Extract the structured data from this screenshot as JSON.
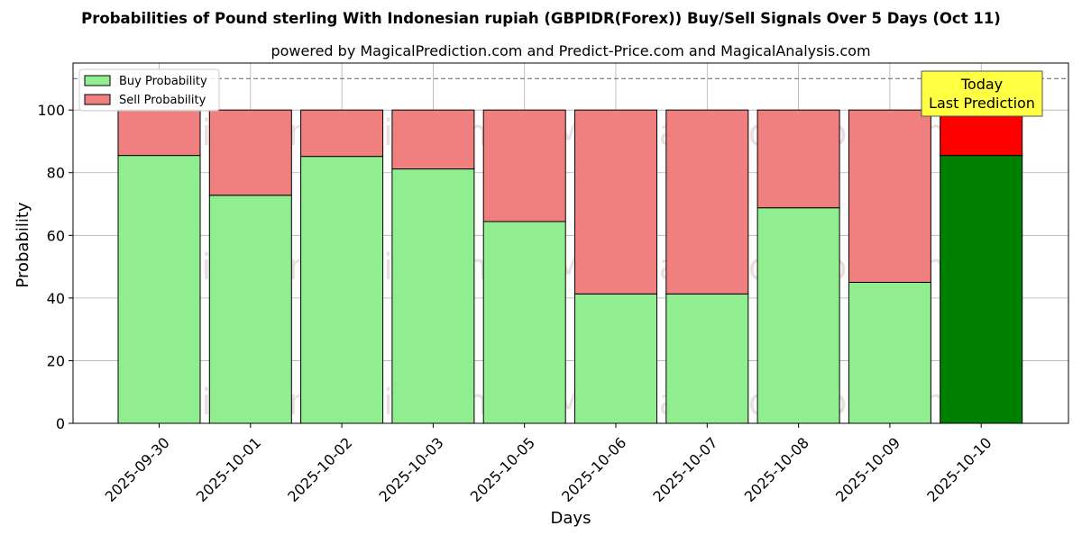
{
  "chart_data": {
    "type": "bar",
    "stacked": true,
    "title": "Probabilities of Pound sterling With Indonesian rupiah (GBPIDR(Forex)) Buy/Sell Signals Over 5 Days (Oct 11)",
    "subtitle": "powered by MagicalPrediction.com and Predict-Price.com and MagicalAnalysis.com",
    "xlabel": "Days",
    "ylabel": "Probability",
    "ylim": [
      0,
      115
    ],
    "yticks": [
      0,
      20,
      40,
      60,
      80,
      100
    ],
    "grid": true,
    "legend_position": "top-left",
    "reference_line": 110,
    "categories": [
      "2025-09-30",
      "2025-10-01",
      "2025-10-02",
      "2025-10-03",
      "2025-10-05",
      "2025-10-06",
      "2025-10-07",
      "2025-10-08",
      "2025-10-09",
      "2025-10-10"
    ],
    "series": [
      {
        "name": "Buy Probability",
        "color": "#90ee90",
        "highlight_color": "#008000",
        "values": [
          85.5,
          72.8,
          85.2,
          81.2,
          64.4,
          41.3,
          41.3,
          68.8,
          45.0,
          85.5
        ]
      },
      {
        "name": "Sell Probability",
        "color": "#f08080",
        "highlight_color": "#ff0000",
        "values": [
          14.5,
          27.2,
          14.8,
          18.8,
          35.6,
          58.7,
          58.7,
          31.2,
          55.0,
          14.5
        ]
      }
    ],
    "highlight_index": 9,
    "annotation": {
      "lines": [
        "Today",
        "Last Prediction"
      ],
      "color": "#ffff44"
    },
    "watermarks": [
      "MagicalAnalysis.com",
      "MagicalPrediction.com"
    ]
  }
}
